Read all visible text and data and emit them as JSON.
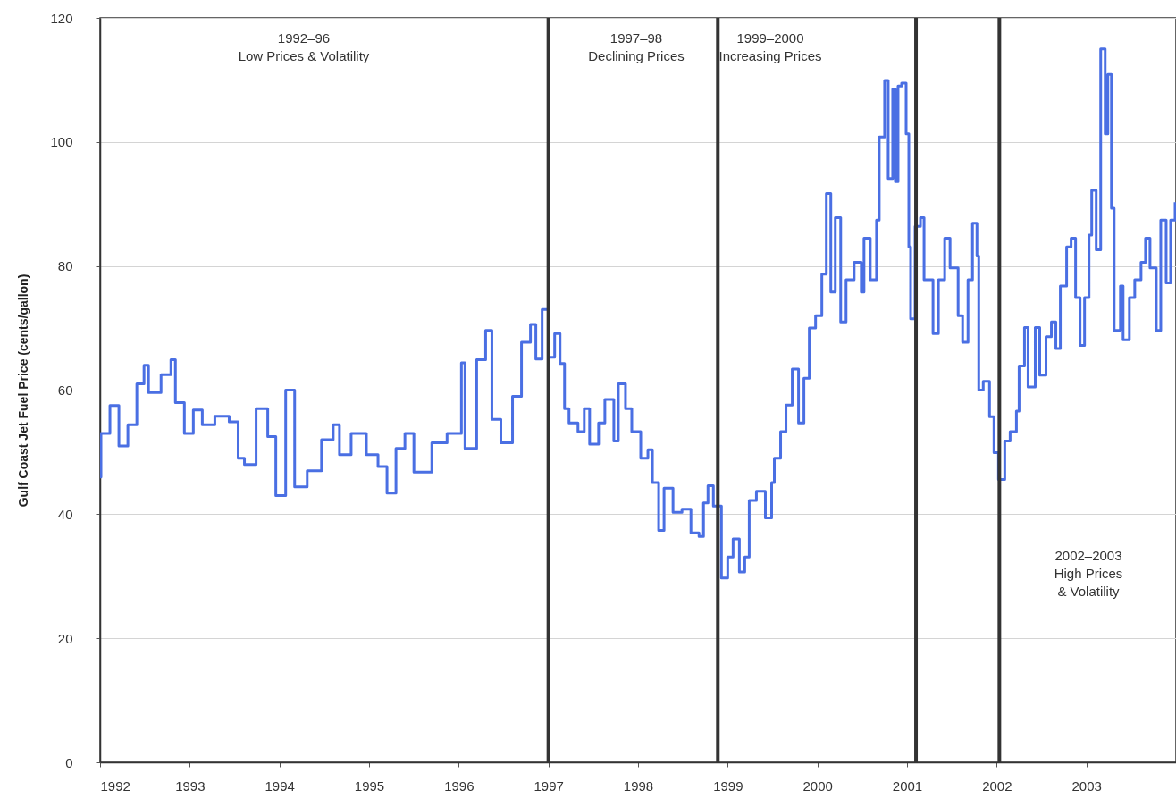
{
  "chart_data": {
    "type": "step",
    "ylabel": "Gulf Coast Jet Fuel Price (cents/gallon)",
    "annotations": [
      "1992–96\nLow Prices & Volatility",
      "1997–98\nDeclining Prices",
      "1999–2000\nIncreasing Prices",
      "2002–2003\nHigh Prices\n& Volatility"
    ],
    "x": [
      1992.0,
      1992.01,
      1992.11,
      1992.21,
      1992.31,
      1992.41,
      1992.49,
      1992.54,
      1992.68,
      1992.79,
      1992.84,
      1992.94,
      1993.04,
      1993.14,
      1993.28,
      1993.44,
      1993.54,
      1993.61,
      1993.74,
      1993.87,
      1993.96,
      1994.07,
      1994.17,
      1994.31,
      1994.47,
      1994.6,
      1994.67,
      1994.8,
      1994.97,
      1995.1,
      1995.2,
      1995.3,
      1995.4,
      1995.5,
      1995.7,
      1995.87,
      1996.03,
      1996.07,
      1996.2,
      1996.3,
      1996.37,
      1996.47,
      1996.6,
      1996.7,
      1996.8,
      1996.86,
      1996.93,
      1997.0,
      1997.07,
      1997.13,
      1997.18,
      1997.23,
      1997.33,
      1997.4,
      1997.46,
      1997.56,
      1997.63,
      1997.73,
      1997.78,
      1997.86,
      1997.93,
      1998.03,
      1998.11,
      1998.16,
      1998.23,
      1998.29,
      1998.39,
      1998.49,
      1998.59,
      1998.68,
      1998.73,
      1998.78,
      1998.84,
      1998.93,
      1999.0,
      1999.06,
      1999.13,
      1999.19,
      1999.24,
      1999.32,
      1999.42,
      1999.49,
      1999.52,
      1999.59,
      1999.65,
      1999.72,
      1999.79,
      1999.85,
      1999.91,
      1999.98,
      2000.05,
      2000.1,
      2000.15,
      2000.2,
      2000.26,
      2000.32,
      2000.41,
      2000.49,
      2000.52,
      2000.59,
      2000.66,
      2000.69,
      2000.75,
      2000.79,
      2000.84,
      2000.87,
      2000.9,
      2000.94,
      2000.99,
      2001.02,
      2001.04,
      2001.09,
      2001.15,
      2001.19,
      2001.29,
      2001.35,
      2001.42,
      2001.48,
      2001.57,
      2001.62,
      2001.68,
      2001.73,
      2001.78,
      2001.8,
      2001.85,
      2001.92,
      2001.97,
      2002.02,
      2002.09,
      2002.15,
      2002.22,
      2002.25,
      2002.31,
      2002.35,
      2002.43,
      2002.48,
      2002.55,
      2002.61,
      2002.66,
      2002.71,
      2002.78,
      2002.83,
      2002.88,
      2002.93,
      2002.98,
      2003.03,
      2003.06,
      2003.11,
      2003.16,
      2003.21,
      2003.24,
      2003.28,
      2003.31,
      2003.38,
      2003.41,
      2003.48,
      2003.54,
      2003.61,
      2003.66,
      2003.71,
      2003.78,
      2003.83,
      2003.89,
      2003.94,
      2003.99
    ],
    "series": [
      {
        "color": "#4a6fe3",
        "values": [
          46,
          53,
          57.5,
          51,
          54.4,
          61,
          64,
          59.6,
          62.5,
          64.9,
          58,
          53,
          56.8,
          54.4,
          55.8,
          54.9,
          49,
          48,
          57,
          52.5,
          43,
          60,
          44.4,
          47,
          52,
          54.4,
          49.6,
          53,
          49.6,
          47.7,
          43.4,
          50.6,
          53,
          46.8,
          51.5,
          53,
          64.4,
          50.6,
          64.9,
          69.6,
          55.3,
          51.5,
          59,
          67.7,
          70.6,
          65,
          73,
          65.3,
          69.1,
          64.3,
          57,
          54.7,
          53.3,
          57,
          51.3,
          54.7,
          58.5,
          51.8,
          61,
          57,
          53.3,
          49,
          50.4,
          45.1,
          37.4,
          44.2,
          40.3,
          40.8,
          37,
          36.4,
          41.8,
          44.6,
          41.3,
          29.7,
          33.1,
          36,
          30.7,
          33.1,
          42.2,
          43.7,
          39.4,
          45.1,
          49,
          53.3,
          57.6,
          63.4,
          54.7,
          61.9,
          70,
          72,
          78.7,
          91.7,
          75.8,
          87.8,
          71,
          77.8,
          80.6,
          75.8,
          84.5,
          77.8,
          87.4,
          100.8,
          109.9,
          94.1,
          108.5,
          93.6,
          109,
          109.5,
          101.3,
          83.1,
          71.5,
          86.4,
          87.8,
          77.8,
          69.1,
          77.8,
          84.5,
          79.7,
          72,
          67.7,
          77.8,
          86.9,
          81.6,
          60,
          61.4,
          55.7,
          49.9,
          45.6,
          51.8,
          53.3,
          56.6,
          63.9,
          70.1,
          60.5,
          70.1,
          62.4,
          68.6,
          71,
          66.7,
          76.8,
          83.1,
          84.5,
          74.9,
          67.2,
          74.9,
          85,
          92.2,
          82.6,
          115,
          101.3,
          110.9,
          89.3,
          69.6,
          76.8,
          68.1,
          74.9,
          77.8,
          80.6,
          84.5,
          79.7,
          69.6,
          87.4,
          77.3,
          87.4,
          90.3
        ]
      }
    ],
    "xlim": [
      1992,
      2004
    ],
    "xticks": [
      1992,
      1993,
      1994,
      1995,
      1996,
      1997,
      1998,
      1999,
      2000,
      2001,
      2002,
      2003
    ],
    "ylim": [
      0,
      120
    ],
    "yticks": [
      0,
      20,
      40,
      60,
      80,
      100,
      120
    ],
    "grid": "y",
    "ref_lines": [
      {
        "axis": "x",
        "value": 1997.0,
        "color": "#333333"
      },
      {
        "axis": "x",
        "value": 1998.89,
        "color": "#333333"
      },
      {
        "axis": "x",
        "value": 2001.1,
        "color": "#333333"
      },
      {
        "axis": "x",
        "value": 2002.03,
        "color": "#333333"
      }
    ]
  }
}
